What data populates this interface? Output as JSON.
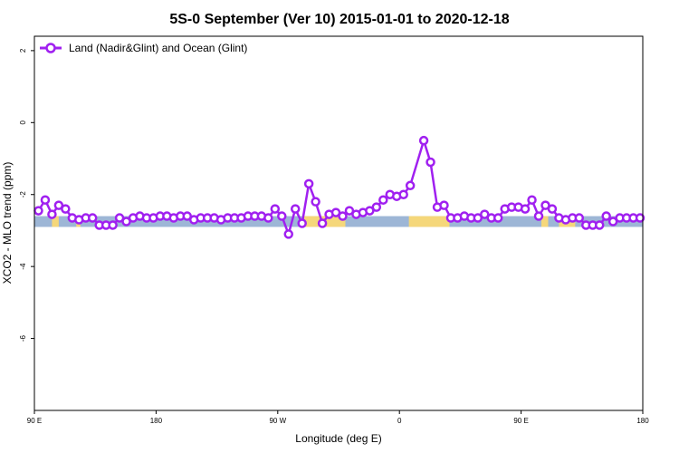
{
  "colors": {
    "series": "#a020f0",
    "ocean_band": "#9db6d6",
    "land_band": "#f5d77a",
    "axis": "#000000",
    "background": "#ffffff"
  },
  "chart_data": {
    "type": "line",
    "title": "5S-0 September (Ver 10)   2015-01-01 to 2020-12-18",
    "xlabel": "Longitude (deg E)",
    "ylabel": "XCO2 - MLO trend (ppm)",
    "xlim": [
      90,
      540
    ],
    "ylim": [
      -8,
      2.4
    ],
    "x_ticks": [
      {
        "value": 90,
        "label": "90 E"
      },
      {
        "value": 180,
        "label": "180"
      },
      {
        "value": 270,
        "label": "90 W"
      },
      {
        "value": 360,
        "label": "0"
      },
      {
        "value": 450,
        "label": "90 E"
      },
      {
        "value": 540,
        "label": "180"
      }
    ],
    "y_ticks": [
      {
        "value": 2,
        "label": "2"
      },
      {
        "value": 0,
        "label": "0"
      },
      {
        "value": -2,
        "label": "-2"
      },
      {
        "value": -4,
        "label": "-4"
      },
      {
        "value": -6,
        "label": "-6"
      }
    ],
    "grid": false,
    "legend_position": "top-left",
    "band": {
      "y_range": [
        -2.9,
        -2.6
      ],
      "land_segments": [
        [
          103,
          108
        ],
        [
          121,
          124
        ],
        [
          288,
          320
        ],
        [
          367,
          397
        ],
        [
          465,
          470
        ],
        [
          478,
          490
        ]
      ]
    },
    "series": [
      {
        "name": "Land (Nadir&Glint) and Ocean (Glint)",
        "points": [
          [
            93,
            -2.45
          ],
          [
            98,
            -2.15
          ],
          [
            103,
            -2.55
          ],
          [
            108,
            -2.3
          ],
          [
            113,
            -2.4
          ],
          [
            118,
            -2.65
          ],
          [
            123,
            -2.7
          ],
          [
            128,
            -2.65
          ],
          [
            133,
            -2.65
          ],
          [
            138,
            -2.85
          ],
          [
            143,
            -2.85
          ],
          [
            148,
            -2.85
          ],
          [
            153,
            -2.65
          ],
          [
            158,
            -2.75
          ],
          [
            163,
            -2.65
          ],
          [
            168,
            -2.6
          ],
          [
            173,
            -2.65
          ],
          [
            178,
            -2.65
          ],
          [
            183,
            -2.6
          ],
          [
            188,
            -2.6
          ],
          [
            193,
            -2.65
          ],
          [
            198,
            -2.6
          ],
          [
            203,
            -2.6
          ],
          [
            208,
            -2.7
          ],
          [
            213,
            -2.65
          ],
          [
            218,
            -2.65
          ],
          [
            223,
            -2.65
          ],
          [
            228,
            -2.7
          ],
          [
            233,
            -2.65
          ],
          [
            238,
            -2.65
          ],
          [
            243,
            -2.65
          ],
          [
            248,
            -2.6
          ],
          [
            253,
            -2.6
          ],
          [
            258,
            -2.6
          ],
          [
            263,
            -2.65
          ],
          [
            268,
            -2.4
          ],
          [
            273,
            -2.6
          ],
          [
            278,
            -3.1
          ],
          [
            283,
            -2.4
          ],
          [
            288,
            -2.8
          ],
          [
            293,
            -1.7
          ],
          [
            298,
            -2.2
          ],
          [
            303,
            -2.8
          ],
          [
            308,
            -2.55
          ],
          [
            313,
            -2.5
          ],
          [
            318,
            -2.6
          ],
          [
            323,
            -2.45
          ],
          [
            328,
            -2.55
          ],
          [
            333,
            -2.5
          ],
          [
            338,
            -2.45
          ],
          [
            343,
            -2.35
          ],
          [
            348,
            -2.15
          ],
          [
            353,
            -2.0
          ],
          [
            358,
            -2.05
          ],
          [
            363,
            -2.0
          ],
          [
            368,
            -1.75
          ],
          [
            378,
            -0.5
          ],
          [
            383,
            -1.1
          ],
          [
            388,
            -2.35
          ],
          [
            393,
            -2.3
          ],
          [
            398,
            -2.65
          ],
          [
            403,
            -2.65
          ],
          [
            408,
            -2.6
          ],
          [
            413,
            -2.65
          ],
          [
            418,
            -2.65
          ],
          [
            423,
            -2.55
          ],
          [
            428,
            -2.65
          ],
          [
            433,
            -2.65
          ],
          [
            438,
            -2.4
          ],
          [
            443,
            -2.35
          ],
          [
            448,
            -2.35
          ],
          [
            453,
            -2.4
          ],
          [
            458,
            -2.15
          ],
          [
            463,
            -2.6
          ],
          [
            468,
            -2.3
          ],
          [
            473,
            -2.4
          ],
          [
            478,
            -2.65
          ],
          [
            483,
            -2.7
          ],
          [
            488,
            -2.65
          ],
          [
            493,
            -2.65
          ],
          [
            498,
            -2.85
          ],
          [
            503,
            -2.85
          ],
          [
            508,
            -2.85
          ],
          [
            513,
            -2.6
          ],
          [
            518,
            -2.75
          ],
          [
            523,
            -2.65
          ],
          [
            528,
            -2.65
          ],
          [
            533,
            -2.65
          ],
          [
            538,
            -2.65
          ]
        ]
      }
    ]
  }
}
